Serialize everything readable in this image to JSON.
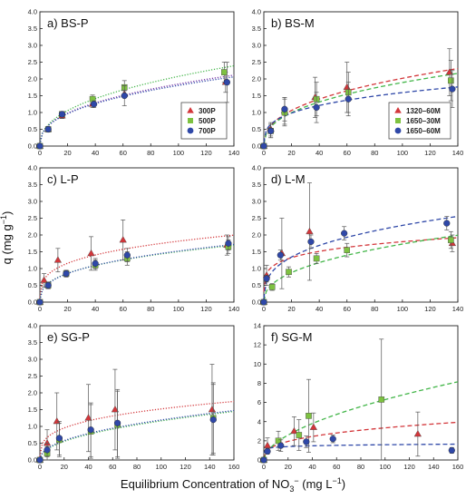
{
  "figure": {
    "ylabel_parts": [
      "q (mg g",
      "−1",
      ")"
    ],
    "xlabel_parts": [
      "Equilibrium Concentration of NO",
      "3",
      "−",
      " (mg L",
      "−1",
      ")"
    ]
  },
  "colors": {
    "red": "#d3363a",
    "green": "#7ec241",
    "blue": "#2f48a8",
    "green_fit": "#43b649",
    "purple_fit": "#7a3aa8"
  },
  "chart_data": [
    {
      "id": "a",
      "type": "scatter",
      "title": "a) BS-P",
      "xlim": [
        0,
        140
      ],
      "ylim": [
        0,
        4.0
      ],
      "xticks": [
        0,
        20,
        40,
        60,
        80,
        100,
        120,
        140
      ],
      "yticks": [
        0.0,
        0.5,
        1.0,
        1.5,
        2.0,
        2.5,
        3.0,
        3.5,
        4.0
      ],
      "fit_style": "dotted",
      "legend": "bottom-right",
      "series": [
        {
          "name": "300P",
          "marker": "triangle",
          "color": "#d3363a",
          "fit_color": "#7a3aa8",
          "points": [
            [
              0,
              0
            ],
            [
              6,
              0.5
            ],
            [
              16,
              0.9
            ],
            [
              38,
              1.25
            ],
            [
              61,
              1.55
            ],
            [
              134,
              1.9
            ]
          ],
          "errors": [
            0,
            0.07,
            0.08,
            0.1,
            0.1,
            0.3
          ],
          "fit_k": 0.3,
          "fit_n": 0.395
        },
        {
          "name": "500P",
          "marker": "square",
          "color": "#7ec241",
          "fit_color": "#43b649",
          "points": [
            [
              0,
              0
            ],
            [
              6,
              0.5
            ],
            [
              16,
              0.95
            ],
            [
              38,
              1.4
            ],
            [
              61,
              1.75
            ],
            [
              133,
              2.2
            ]
          ],
          "errors": [
            0,
            0.07,
            0.08,
            0.12,
            0.2,
            0.3
          ],
          "fit_k": 0.3,
          "fit_n": 0.42
        },
        {
          "name": "700P",
          "marker": "circle",
          "color": "#2f48a8",
          "fit_color": "#2f48a8",
          "points": [
            [
              0,
              0
            ],
            [
              6,
              0.5
            ],
            [
              16,
              0.95
            ],
            [
              39,
              1.25
            ],
            [
              61,
              1.5
            ],
            [
              135,
              1.9
            ]
          ],
          "errors": [
            0,
            0.07,
            0.08,
            0.1,
            0.3,
            0.6
          ],
          "fit_k": 0.3,
          "fit_n": 0.39
        }
      ]
    },
    {
      "id": "b",
      "type": "scatter",
      "title": "b) BS-M",
      "xlim": [
        0,
        140
      ],
      "ylim": [
        0,
        4.0
      ],
      "xticks": [
        0,
        20,
        40,
        60,
        80,
        100,
        120,
        140
      ],
      "yticks": [
        0.0,
        0.5,
        1.0,
        1.5,
        2.0,
        2.5,
        3.0,
        3.5,
        4.0
      ],
      "fit_style": "dashed",
      "legend": "bottom-right",
      "series": [
        {
          "name": "1320–60M",
          "marker": "triangle",
          "color": "#d3363a",
          "fit_color": "#d3363a",
          "points": [
            [
              0,
              0
            ],
            [
              5,
              0.5
            ],
            [
              15,
              1.05
            ],
            [
              37,
              1.45
            ],
            [
              60,
              1.75
            ],
            [
              134,
              2.2
            ]
          ],
          "errors": [
            0,
            0.2,
            0.4,
            0.6,
            0.75,
            0.7
          ],
          "fit_k": 0.32,
          "fit_n": 0.4
        },
        {
          "name": "1650–30M",
          "marker": "square",
          "color": "#7ec241",
          "fit_color": "#43b649",
          "points": [
            [
              0,
              0
            ],
            [
              5,
              0.45
            ],
            [
              15,
              1.0
            ],
            [
              38,
              1.4
            ],
            [
              61,
              1.6
            ],
            [
              135,
              1.95
            ]
          ],
          "errors": [
            0,
            0.2,
            0.4,
            0.5,
            0.6,
            0.6
          ],
          "fit_k": 0.3,
          "fit_n": 0.4
        },
        {
          "name": "1650–60M",
          "marker": "circle",
          "color": "#2f48a8",
          "fit_color": "#2f48a8",
          "points": [
            [
              0,
              0
            ],
            [
              5,
              0.45
            ],
            [
              15,
              1.1
            ],
            [
              38,
              1.15
            ],
            [
              61,
              1.4
            ],
            [
              136,
              1.7
            ]
          ],
          "errors": [
            0,
            0.2,
            0.35,
            0.45,
            0.5,
            0.55
          ],
          "fit_k": 0.4,
          "fit_n": 0.3
        }
      ]
    },
    {
      "id": "c",
      "type": "scatter",
      "title": "c) L-P",
      "xlim": [
        0,
        140
      ],
      "ylim": [
        0,
        4.0
      ],
      "xticks": [
        0,
        20,
        40,
        60,
        80,
        100,
        120,
        140
      ],
      "yticks": [
        0.0,
        0.5,
        1.0,
        1.5,
        2.0,
        2.5,
        3.0,
        3.5,
        4.0
      ],
      "fit_style": "dotted",
      "legend": "none",
      "series": [
        {
          "name": "300P",
          "marker": "triangle",
          "color": "#d3363a",
          "fit_color": "#d3363a",
          "points": [
            [
              0,
              0
            ],
            [
              3,
              0.65
            ],
            [
              13,
              1.25
            ],
            [
              37,
              1.45
            ],
            [
              60,
              1.85
            ],
            [
              135,
              1.7
            ]
          ],
          "errors": [
            0,
            0.2,
            0.35,
            0.5,
            0.6,
            0.3
          ],
          "fit_k": 0.5,
          "fit_n": 0.28
        },
        {
          "name": "500P",
          "marker": "square",
          "color": "#7ec241",
          "fit_color": "#43b649",
          "points": [
            [
              0,
              0
            ],
            [
              6,
              0.5
            ],
            [
              19,
              0.85
            ],
            [
              40,
              1.1
            ],
            [
              63,
              1.3
            ],
            [
              136,
              1.65
            ]
          ],
          "errors": [
            0,
            0.1,
            0.1,
            0.15,
            0.2,
            0.2
          ],
          "fit_k": 0.3,
          "fit_n": 0.35
        },
        {
          "name": "700P",
          "marker": "circle",
          "color": "#2f48a8",
          "fit_color": "#2f48a8",
          "points": [
            [
              0,
              0
            ],
            [
              6,
              0.5
            ],
            [
              19,
              0.85
            ],
            [
              40,
              1.15
            ],
            [
              63,
              1.4
            ],
            [
              136,
              1.75
            ]
          ],
          "errors": [
            0,
            0.1,
            0.1,
            0.15,
            0.2,
            0.2
          ],
          "fit_k": 0.29,
          "fit_n": 0.36
        }
      ]
    },
    {
      "id": "d",
      "type": "scatter",
      "title": "d) L-M",
      "xlim": [
        0,
        140
      ],
      "ylim": [
        0,
        4.0
      ],
      "xticks": [
        0,
        20,
        40,
        60,
        80,
        100,
        120,
        140
      ],
      "yticks": [
        0.0,
        0.5,
        1.0,
        1.5,
        2.0,
        2.5,
        3.0,
        3.5,
        4.0
      ],
      "fit_style": "dashed",
      "legend": "none",
      "series": [
        {
          "name": "1320–60M",
          "marker": "triangle",
          "color": "#d3363a",
          "fit_color": "#d3363a",
          "points": [
            [
              0,
              0
            ],
            [
              2,
              0.8
            ],
            [
              13,
              1.45
            ],
            [
              33,
              2.1
            ],
            [
              136,
              1.75
            ]
          ],
          "errors": [
            0,
            0.3,
            1.05,
            1.45,
            0.25
          ],
          "fit_k": 0.75,
          "fit_n": 0.19
        },
        {
          "name": "1650–30M",
          "marker": "square",
          "color": "#7ec241",
          "fit_color": "#43b649",
          "points": [
            [
              0,
              0
            ],
            [
              6,
              0.45
            ],
            [
              18,
              0.9
            ],
            [
              38,
              1.3
            ],
            [
              60,
              1.55
            ],
            [
              135,
              1.85
            ]
          ],
          "errors": [
            0,
            0.1,
            0.15,
            0.15,
            0.2,
            0.25
          ],
          "fit_k": 0.25,
          "fit_n": 0.42
        },
        {
          "name": "1650–60M",
          "marker": "circle",
          "color": "#2f48a8",
          "fit_color": "#2f48a8",
          "points": [
            [
              0,
              0
            ],
            [
              2,
              0.7
            ],
            [
              12,
              1.4
            ],
            [
              34,
              1.8
            ],
            [
              58,
              2.05
            ],
            [
              132,
              2.35
            ]
          ],
          "errors": [
            0,
            0.1,
            0.15,
            0.2,
            0.2,
            0.2
          ],
          "fit_k": 0.5,
          "fit_n": 0.33
        }
      ]
    },
    {
      "id": "e",
      "type": "scatter",
      "title": "e) SG-P",
      "xlim": [
        0,
        160
      ],
      "ylim": [
        0,
        4.0
      ],
      "xticks": [
        0,
        20,
        40,
        60,
        80,
        100,
        120,
        140,
        160
      ],
      "yticks": [
        0.0,
        0.5,
        1.0,
        1.5,
        2.0,
        2.5,
        3.0,
        3.5,
        4.0
      ],
      "fit_style": "dotted",
      "legend": "none",
      "series": [
        {
          "name": "300P",
          "marker": "triangle",
          "color": "#d3363a",
          "fit_color": "#d3363a",
          "points": [
            [
              0,
              0
            ],
            [
              6,
              0.5
            ],
            [
              14,
              1.15
            ],
            [
              40,
              1.25
            ],
            [
              62,
              1.5
            ],
            [
              142,
              1.5
            ]
          ],
          "errors": [
            0,
            0.4,
            0.85,
            1.0,
            1.2,
            1.35
          ],
          "fit_k": 0.4,
          "fit_n": 0.29
        },
        {
          "name": "500P",
          "marker": "square",
          "color": "#7ec241",
          "fit_color": "#43b649",
          "points": [
            [
              0,
              0
            ],
            [
              6,
              0.2
            ],
            [
              16,
              0.6
            ],
            [
              42,
              0.85
            ],
            [
              64,
              1.05
            ],
            [
              143,
              1.25
            ]
          ],
          "errors": [
            0,
            0.2,
            0.5,
            0.8,
            1.0,
            1.05
          ],
          "fit_k": 0.14,
          "fit_n": 0.46
        },
        {
          "name": "700P",
          "marker": "circle",
          "color": "#2f48a8",
          "fit_color": "#2f48a8",
          "points": [
            [
              0,
              0
            ],
            [
              6,
              0.3
            ],
            [
              16,
              0.65
            ],
            [
              42,
              0.9
            ],
            [
              64,
              1.1
            ],
            [
              143,
              1.2
            ]
          ],
          "errors": [
            0,
            0.2,
            0.5,
            0.8,
            1.0,
            1.05
          ],
          "fit_k": 0.15,
          "fit_n": 0.45
        }
      ]
    },
    {
      "id": "f",
      "type": "scatter",
      "title": "f) SG-M",
      "xlim": [
        0,
        160
      ],
      "ylim": [
        0,
        14
      ],
      "xticks": [
        0,
        20,
        40,
        60,
        80,
        100,
        120,
        140,
        160
      ],
      "yticks": [
        0,
        2,
        4,
        6,
        8,
        10,
        12,
        14
      ],
      "fit_style": "dashed",
      "legend": "none",
      "series": [
        {
          "name": "1320–60M",
          "marker": "triangle",
          "color": "#d3363a",
          "fit_color": "#d3363a",
          "points": [
            [
              0,
              0
            ],
            [
              3,
              1.5
            ],
            [
              25,
              3.0
            ],
            [
              41,
              3.4
            ],
            [
              127,
              2.7
            ]
          ],
          "errors": [
            0,
            0.8,
            1.5,
            1.5,
            2.3
          ],
          "fit_k": 0.7,
          "fit_n": 0.34
        },
        {
          "name": "1650–30M",
          "marker": "square",
          "color": "#7ec241",
          "fit_color": "#43b649",
          "points": [
            [
              0,
              0
            ],
            [
              12,
              2.0
            ],
            [
              29,
              2.6
            ],
            [
              37,
              4.6
            ],
            [
              97,
              6.3
            ]
          ],
          "errors": [
            0,
            1.0,
            1.6,
            3.8,
            6.3
          ],
          "fit_k": 0.5,
          "fit_n": 0.55
        },
        {
          "name": "1650–60M",
          "marker": "circle",
          "color": "#2f48a8",
          "fit_color": "#2f48a8",
          "points": [
            [
              0,
              0
            ],
            [
              3,
              0.9
            ],
            [
              14,
              1.5
            ],
            [
              35,
              1.9
            ],
            [
              57,
              2.2
            ],
            [
              155,
              1.0
            ]
          ],
          "errors": [
            0,
            0.3,
            0.6,
            0.6,
            0.4,
            0.3
          ],
          "fit_k": 1.1,
          "fit_n": 0.08
        }
      ]
    }
  ]
}
